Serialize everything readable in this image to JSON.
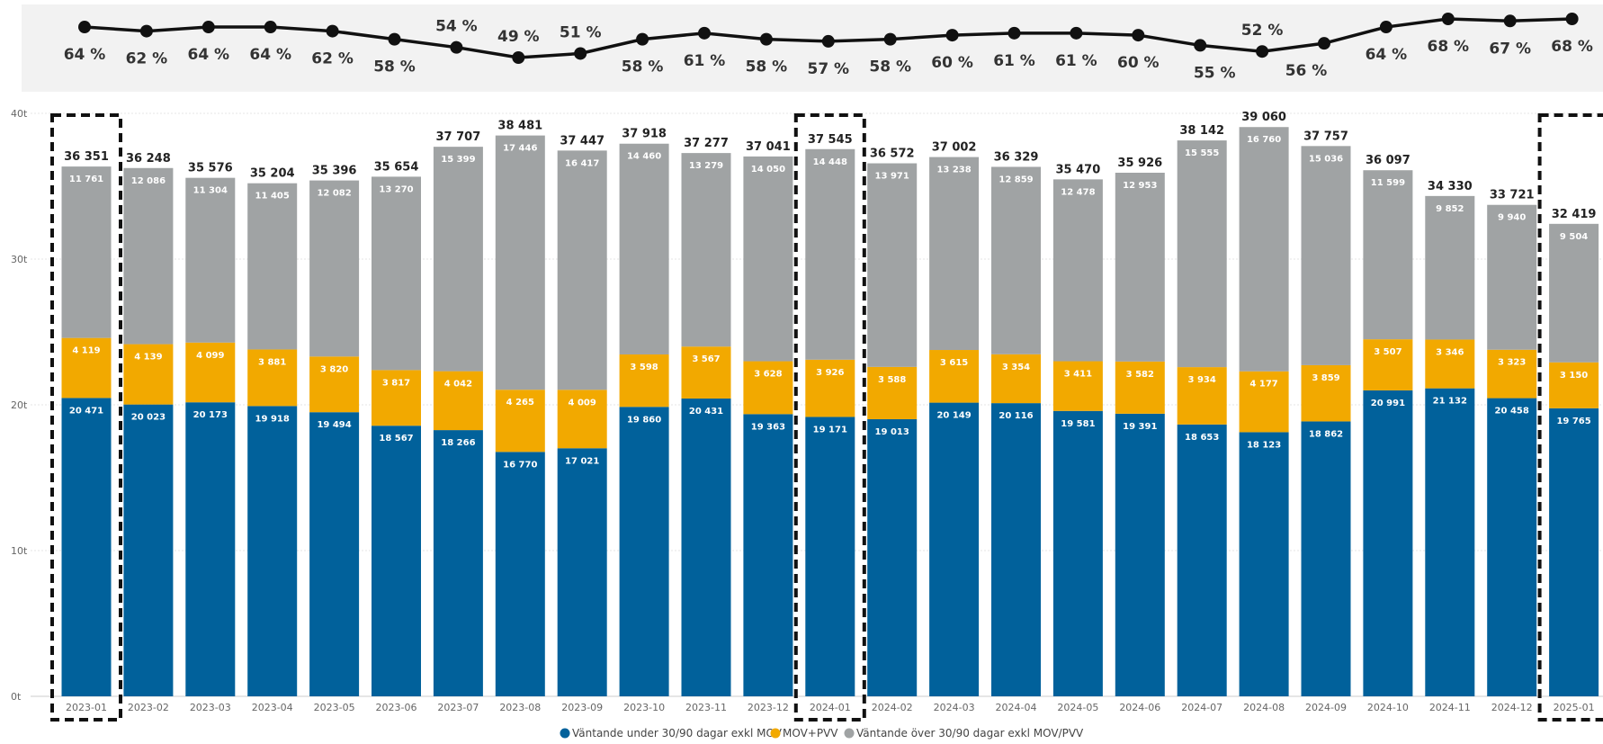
{
  "chart_data": [
    {
      "type": "line",
      "categories": [
        "2023-01",
        "2023-02",
        "2023-03",
        "2023-04",
        "2023-05",
        "2023-06",
        "2023-07",
        "2023-08",
        "2023-09",
        "2023-10",
        "2023-11",
        "2023-12",
        "2024-01",
        "2024-02",
        "2024-03",
        "2024-04",
        "2024-05",
        "2024-06",
        "2024-07",
        "2024-08",
        "2024-09",
        "2024-10",
        "2024-11",
        "2024-12",
        "2025-01"
      ],
      "values": [
        64,
        62,
        64,
        64,
        62,
        58,
        54,
        49,
        51,
        58,
        61,
        58,
        57,
        58,
        60,
        61,
        61,
        60,
        55,
        52,
        56,
        64,
        68,
        67,
        68
      ],
      "value_labels": [
        "64 %",
        "62 %",
        "64 %",
        "64 %",
        "62 %",
        "58 %",
        "54 %",
        "49 %",
        "51 %",
        "58 %",
        "61 %",
        "58 %",
        "57 %",
        "58 %",
        "60 %",
        "61 %",
        "61 %",
        "60 %",
        "55 %",
        "52 %",
        "56 %",
        "64 %",
        "68 %",
        "67 %",
        "68 %"
      ],
      "line_color": "#111111"
    },
    {
      "type": "bar",
      "stacked": true,
      "categories": [
        "2023-01",
        "2023-02",
        "2023-03",
        "2023-04",
        "2023-05",
        "2023-06",
        "2023-07",
        "2023-08",
        "2023-09",
        "2023-10",
        "2023-11",
        "2023-12",
        "2024-01",
        "2024-02",
        "2024-03",
        "2024-04",
        "2024-05",
        "2024-06",
        "2024-07",
        "2024-08",
        "2024-09",
        "2024-10",
        "2024-11",
        "2024-12",
        "2025-01"
      ],
      "series": [
        {
          "name": "Väntande under 30/90 dagar exkl MOV",
          "color": "#01619B",
          "values": [
            20471,
            20023,
            20173,
            19918,
            19494,
            18567,
            18266,
            16770,
            17021,
            19860,
            20431,
            19363,
            19171,
            19013,
            20149,
            20116,
            19581,
            19391,
            18653,
            18123,
            18862,
            20991,
            21132,
            20458,
            19765
          ],
          "labels": [
            "20 471",
            "20 023",
            "20 173",
            "19 918",
            "19 494",
            "18 567",
            "18 266",
            "16 770",
            "17 021",
            "19 860",
            "20 431",
            "19 363",
            "19 171",
            "19 013",
            "20 149",
            "20 116",
            "19 581",
            "19 391",
            "18 653",
            "18 123",
            "18 862",
            "20 991",
            "21 132",
            "20 458",
            "19 765"
          ]
        },
        {
          "name": "MOV+PVV",
          "color": "#F2A900",
          "values": [
            4119,
            4139,
            4099,
            3881,
            3820,
            3817,
            4042,
            4265,
            4009,
            3598,
            3567,
            3628,
            3926,
            3588,
            3615,
            3354,
            3411,
            3582,
            3934,
            4177,
            3859,
            3507,
            3346,
            3323,
            3150
          ],
          "labels": [
            "4 119",
            "4 139",
            "4 099",
            "3 881",
            "3 820",
            "3 817",
            "4 042",
            "4 265",
            "4 009",
            "3 598",
            "3 567",
            "3 628",
            "3 926",
            "3 588",
            "3 615",
            "3 354",
            "3 411",
            "3 582",
            "3 934",
            "4 177",
            "3 859",
            "3 507",
            "3 346",
            "3 323",
            "3 150"
          ]
        },
        {
          "name": "Väntande över 30/90 dagar exkl MOV/PVV",
          "color": "#A0A3A4",
          "values": [
            11761,
            12086,
            11304,
            11405,
            12082,
            13270,
            15399,
            17446,
            16417,
            14460,
            13279,
            14050,
            14448,
            13971,
            13238,
            12859,
            12478,
            12953,
            15555,
            16760,
            15036,
            11599,
            9852,
            9940,
            9504
          ],
          "labels": [
            "11 761",
            "12 086",
            "11 304",
            "11 405",
            "12 082",
            "13 270",
            "15 399",
            "17 446",
            "16 417",
            "14 460",
            "13 279",
            "14 050",
            "14 448",
            "13 971",
            "13 238",
            "12 859",
            "12 478",
            "12 953",
            "15 555",
            "16 760",
            "15 036",
            "11 599",
            "9 852",
            "9 940",
            "9 504"
          ]
        }
      ],
      "totals": [
        36351,
        36248,
        35576,
        35204,
        35396,
        35654,
        37707,
        38481,
        37447,
        37918,
        37277,
        37041,
        37545,
        36572,
        37002,
        36329,
        35470,
        35926,
        38142,
        39060,
        37757,
        36097,
        34330,
        33721,
        32419
      ],
      "total_labels": [
        "36 351",
        "36 248",
        "35 576",
        "35 204",
        "35 396",
        "35 654",
        "37 707",
        "38 481",
        "37 447",
        "37 918",
        "37 277",
        "37 041",
        "37 545",
        "36 572",
        "37 002",
        "36 329",
        "35 470",
        "35 926",
        "38 142",
        "39 060",
        "37 757",
        "36 097",
        "34 330",
        "33 721",
        "32 419"
      ],
      "ylim": [
        0,
        40000
      ],
      "yticks": [
        0,
        10000,
        20000,
        30000,
        40000
      ],
      "ytick_labels": [
        "0t",
        "10t",
        "20t",
        "30t",
        "40t"
      ],
      "grid": true,
      "legend_position": "bottom-center",
      "highlighted_categories": [
        "2023-01",
        "2024-01",
        "2025-01"
      ]
    }
  ]
}
